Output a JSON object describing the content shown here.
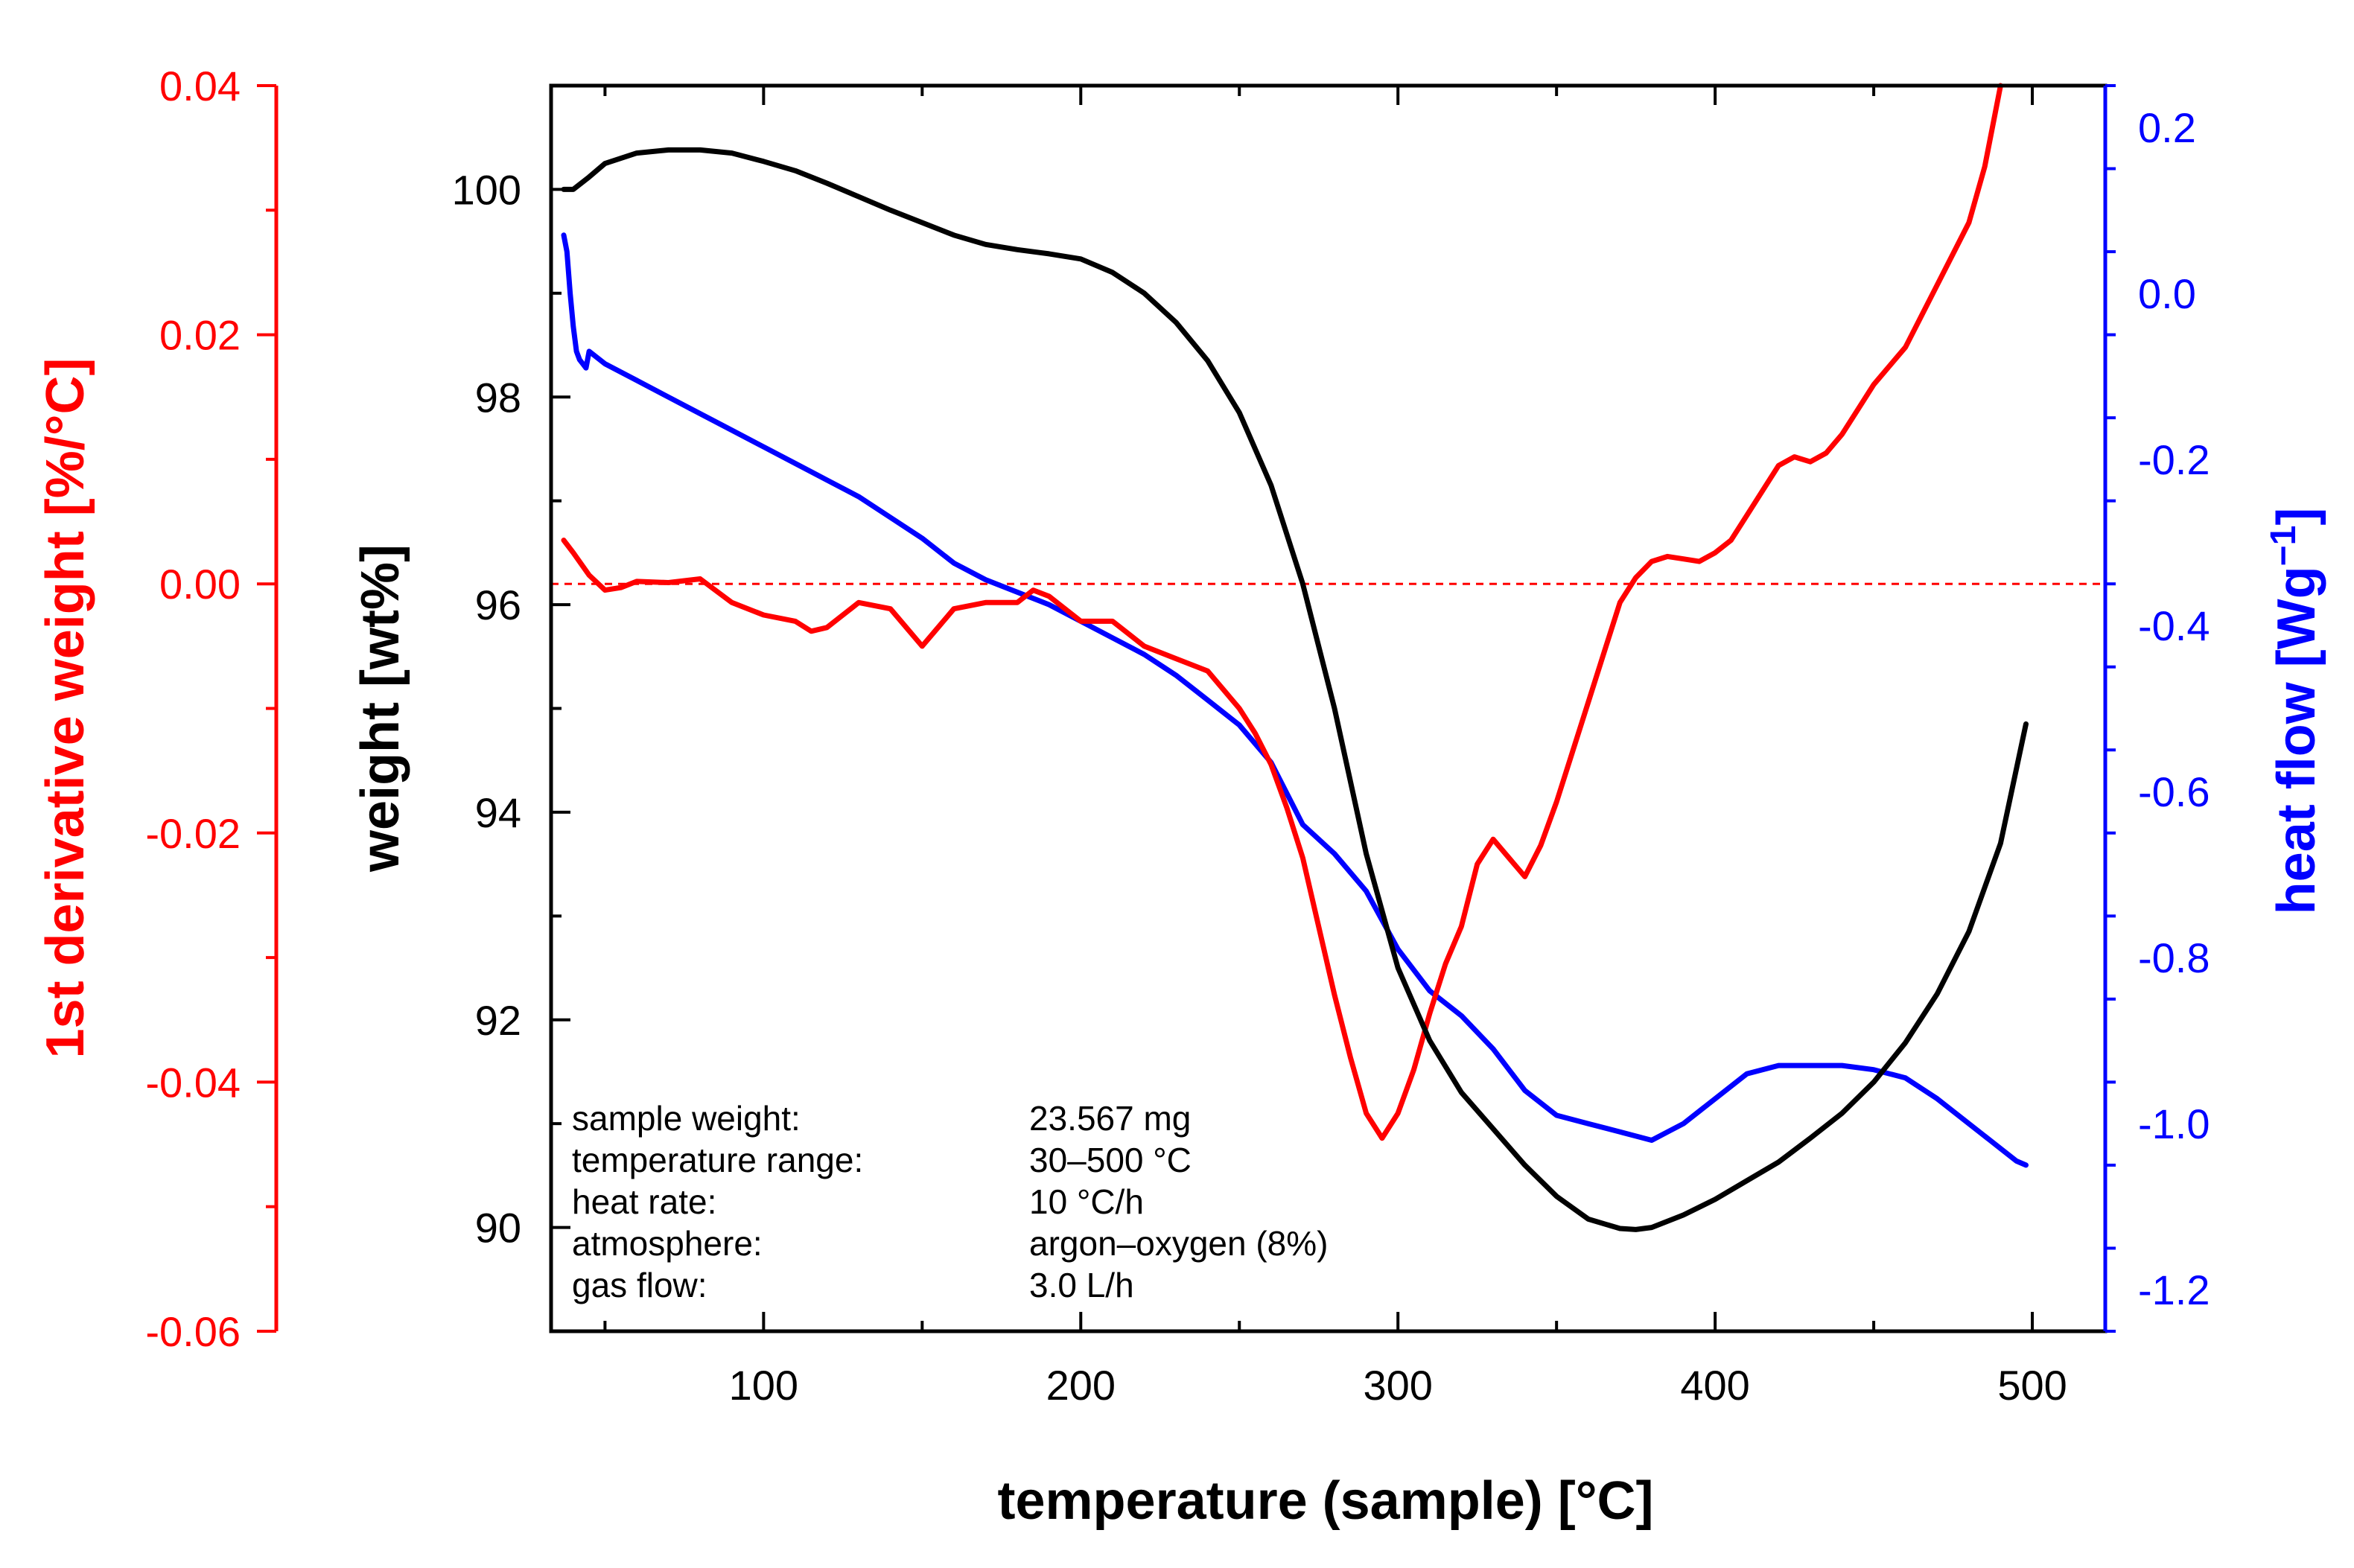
{
  "colors": {
    "weight": "#000000",
    "derivative": "#ff0000",
    "heat_flow": "#0000ff",
    "background": "#ffffff"
  },
  "chart_data": {
    "type": "line",
    "title": "",
    "xlabel": "temperature (sample) [°C]",
    "xlim": [
      33,
      523
    ],
    "x_ticks": [
      100,
      200,
      300,
      400,
      500
    ],
    "axes": {
      "weight": {
        "label": "weight [wt%]",
        "side": "left-inner",
        "ylim": [
          89,
          101
        ],
        "ticks": [
          90,
          92,
          94,
          96,
          98,
          100
        ]
      },
      "derivative": {
        "label": "1st derivative weight [%/°C]",
        "side": "left-outer",
        "ylim": [
          -0.06,
          0.04
        ],
        "ticks": [
          "-0.06",
          "-0.04",
          "-0.02",
          "0.00",
          "0.02",
          "0.04"
        ]
      },
      "heat_flow": {
        "label_main": "heat flow [Wg",
        "label_sup": "−1",
        "label_close": "]",
        "side": "right",
        "ylim": [
          -1.25,
          0.25
        ],
        "ticks": [
          "-1.2",
          "-1.0",
          "-0.8",
          "-0.6",
          "-0.4",
          "-0.2",
          "0.0",
          "0.2"
        ]
      }
    },
    "reference_line": {
      "axis": "derivative",
      "y": 0.0,
      "style": "dashed"
    },
    "series": [
      {
        "axis": "weight",
        "x": [
          37,
          40,
          45,
          50,
          60,
          70,
          80,
          90,
          100,
          110,
          120,
          130,
          140,
          150,
          160,
          170,
          180,
          190,
          200,
          210,
          220,
          230,
          240,
          250,
          260,
          270,
          280,
          290,
          300,
          310,
          320,
          330,
          340,
          350,
          360,
          370,
          375,
          380,
          390,
          400,
          410,
          420,
          430,
          440,
          450,
          460,
          470,
          480,
          490,
          498
        ],
        "y": [
          100.0,
          100.0,
          100.12,
          100.25,
          100.35,
          100.38,
          100.38,
          100.35,
          100.27,
          100.18,
          100.06,
          99.93,
          99.8,
          99.68,
          99.56,
          99.47,
          99.42,
          99.38,
          99.33,
          99.2,
          99.0,
          98.72,
          98.35,
          97.85,
          97.15,
          96.2,
          95.0,
          93.6,
          92.5,
          91.8,
          91.3,
          90.95,
          90.6,
          90.3,
          90.08,
          89.99,
          89.98,
          90.0,
          90.12,
          90.27,
          90.45,
          90.63,
          90.86,
          91.1,
          91.4,
          91.78,
          92.25,
          92.85,
          93.7,
          94.85
        ]
      },
      {
        "axis": "derivative",
        "x": [
          37,
          40,
          45,
          50,
          55,
          60,
          70,
          80,
          90,
          100,
          110,
          115,
          120,
          130,
          140,
          150,
          155,
          160,
          170,
          180,
          185,
          190,
          200,
          210,
          220,
          230,
          240,
          250,
          255,
          260,
          265,
          270,
          275,
          280,
          285,
          290,
          295,
          300,
          305,
          310,
          315,
          320,
          325,
          330,
          335,
          340,
          345,
          350,
          355,
          360,
          365,
          370,
          375,
          380,
          385,
          390,
          395,
          400,
          405,
          410,
          415,
          420,
          425,
          430,
          435,
          440,
          445,
          450,
          455,
          460,
          465,
          470,
          475,
          480,
          485,
          490
        ],
        "y": [
          0.0035,
          0.0025,
          0.0007,
          -0.0005,
          -0.0003,
          0.0002,
          0.0001,
          0.0004,
          -0.0015,
          -0.0025,
          -0.003,
          -0.0038,
          -0.0035,
          -0.0015,
          -0.002,
          -0.005,
          -0.0035,
          -0.002,
          -0.0015,
          -0.0015,
          -0.0005,
          -0.001,
          -0.003,
          -0.003,
          -0.005,
          -0.006,
          -0.007,
          -0.01,
          -0.012,
          -0.0145,
          -0.018,
          -0.022,
          -0.0275,
          -0.033,
          -0.038,
          -0.0425,
          -0.0445,
          -0.0425,
          -0.039,
          -0.0345,
          -0.0305,
          -0.0275,
          -0.0225,
          -0.0205,
          -0.022,
          -0.0235,
          -0.021,
          -0.0175,
          -0.0135,
          -0.0095,
          -0.0055,
          -0.0015,
          0.0005,
          0.0018,
          0.0022,
          0.002,
          0.0018,
          0.0025,
          0.0035,
          0.0055,
          0.0075,
          0.0095,
          0.0102,
          0.0098,
          0.0105,
          0.012,
          0.014,
          0.016,
          0.0175,
          0.019,
          0.0215,
          0.024,
          0.0265,
          0.029,
          0.0335,
          0.04
        ]
      },
      {
        "axis": "heat_flow",
        "x": [
          37,
          38,
          39,
          40,
          41,
          42,
          43,
          44,
          45,
          50,
          60,
          70,
          80,
          90,
          100,
          110,
          120,
          130,
          140,
          150,
          160,
          170,
          180,
          190,
          200,
          210,
          220,
          230,
          240,
          250,
          260,
          270,
          280,
          290,
          300,
          310,
          320,
          330,
          340,
          350,
          360,
          370,
          375,
          380,
          385,
          390,
          400,
          410,
          420,
          430,
          440,
          450,
          460,
          470,
          480,
          490,
          495,
          498
        ],
        "y": [
          0.07,
          0.05,
          0.0,
          -0.04,
          -0.07,
          -0.08,
          -0.085,
          -0.09,
          -0.07,
          -0.085,
          -0.105,
          -0.125,
          -0.145,
          -0.165,
          -0.185,
          -0.205,
          -0.225,
          -0.245,
          -0.27,
          -0.295,
          -0.325,
          -0.345,
          -0.36,
          -0.375,
          -0.395,
          -0.415,
          -0.435,
          -0.46,
          -0.49,
          -0.52,
          -0.565,
          -0.64,
          -0.675,
          -0.72,
          -0.79,
          -0.84,
          -0.87,
          -0.91,
          -0.96,
          -0.99,
          -1.0,
          -1.01,
          -1.015,
          -1.02,
          -1.01,
          -1.0,
          -0.97,
          -0.94,
          -0.93,
          -0.93,
          -0.93,
          -0.935,
          -0.945,
          -0.97,
          -1.0,
          -1.03,
          -1.045,
          -1.05
        ]
      }
    ],
    "info_box": [
      {
        "label": "sample weight:",
        "value": "23.567 mg"
      },
      {
        "label": "temperature range:",
        "value": "30–500 °C"
      },
      {
        "label": "heat rate:",
        "value": "10 °C/h"
      },
      {
        "label": "atmosphere:",
        "value": "argon–oxygen (8%)"
      },
      {
        "label": "gas flow:",
        "value": "3.0 L/h"
      }
    ]
  }
}
